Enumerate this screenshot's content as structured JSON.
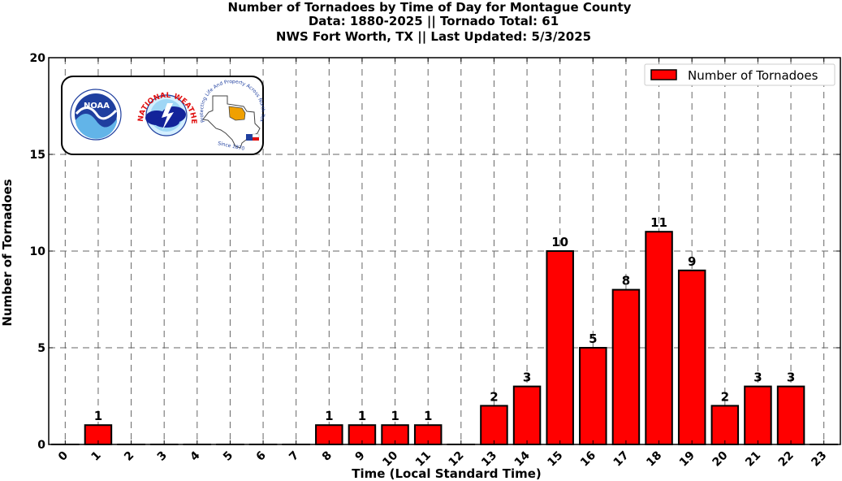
{
  "chart_data": {
    "type": "bar",
    "title_lines": [
      "Number of Tornadoes by Time of Day for Montague County",
      "Data: 1880-2025 || Tornado Total: 61",
      "NWS Fort Worth, TX || Last Updated: 5/3/2025"
    ],
    "xlabel": "Time (Local Standard Time)",
    "ylabel": "Number of Tornadoes",
    "categories": [
      "0",
      "1",
      "2",
      "3",
      "4",
      "5",
      "6",
      "7",
      "8",
      "9",
      "10",
      "11",
      "12",
      "13",
      "14",
      "15",
      "16",
      "17",
      "18",
      "19",
      "20",
      "21",
      "22",
      "23"
    ],
    "series": [
      {
        "name": "Number of Tornadoes",
        "color": "#ff0000",
        "values": [
          0,
          1,
          0,
          0,
          0,
          0,
          0,
          0,
          1,
          1,
          1,
          1,
          0,
          2,
          3,
          10,
          5,
          8,
          11,
          9,
          2,
          3,
          3,
          0
        ]
      }
    ],
    "ylim": [
      0,
      20
    ],
    "yticks": [
      0,
      5,
      10,
      15,
      20
    ],
    "grid": true,
    "legend_position": "top-right",
    "bar_edge_color": "#000000"
  },
  "logos": {
    "noaa_text": "NOAA",
    "nws_arc_text": "NATIONAL WEATHER SERVICE",
    "texas_arc_text": "Protecting Life And Property Across North Texas",
    "since_text": "Since 1870",
    "colors": {
      "noaa_blue": "#1f3f9f",
      "nws_red": "#e01010",
      "texas_orange": "#f0a000"
    }
  }
}
